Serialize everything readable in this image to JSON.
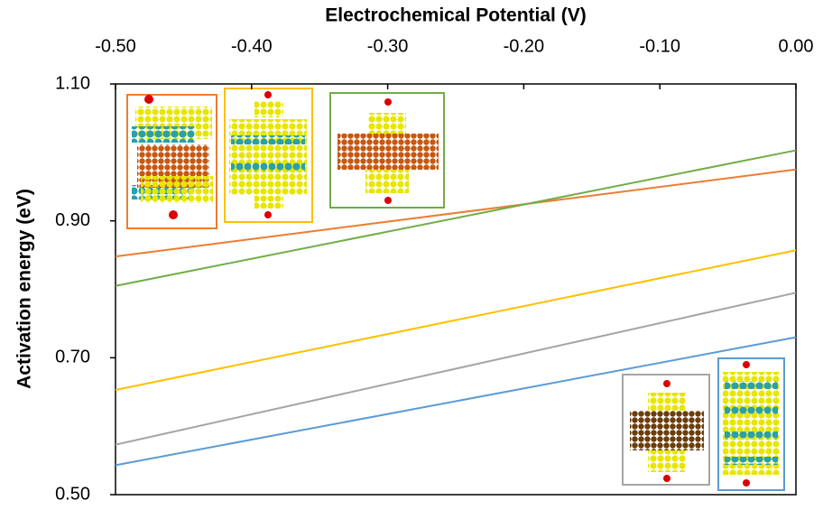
{
  "chart_data": {
    "type": "line",
    "x_label": "Electrochemical Potential (V)",
    "y_label": "Activation energy (eV)",
    "x": [
      -0.5,
      0.0
    ],
    "xlim": [
      -0.5,
      0.0
    ],
    "xticks": [
      {
        "value": -0.5,
        "label": "-0.50"
      },
      {
        "value": -0.4,
        "label": "-0.40"
      },
      {
        "value": -0.3,
        "label": "-0.30"
      },
      {
        "value": -0.2,
        "label": "-0.20"
      },
      {
        "value": -0.1,
        "label": "-0.10"
      },
      {
        "value": 0.0,
        "label": "0.00"
      }
    ],
    "ylim": [
      0.5,
      1.1
    ],
    "yticks": [
      {
        "value": 0.5,
        "label": "0.50"
      },
      {
        "value": 0.7,
        "label": "0.70"
      },
      {
        "value": 0.9,
        "label": "0.90"
      },
      {
        "value": 1.1,
        "label": "1.10"
      }
    ],
    "grid": false,
    "series": [
      {
        "color": "#ed7d31",
        "values": [
          0.848,
          0.975
        ]
      },
      {
        "color": "#70ad47",
        "values": [
          0.805,
          1.003
        ]
      },
      {
        "color": "#ffc000",
        "values": [
          0.653,
          0.857
        ]
      },
      {
        "color": "#a5a5a5",
        "values": [
          0.573,
          0.795
        ]
      },
      {
        "color": "#5b9bd5",
        "values": [
          0.543,
          0.73
        ]
      }
    ]
  }
}
